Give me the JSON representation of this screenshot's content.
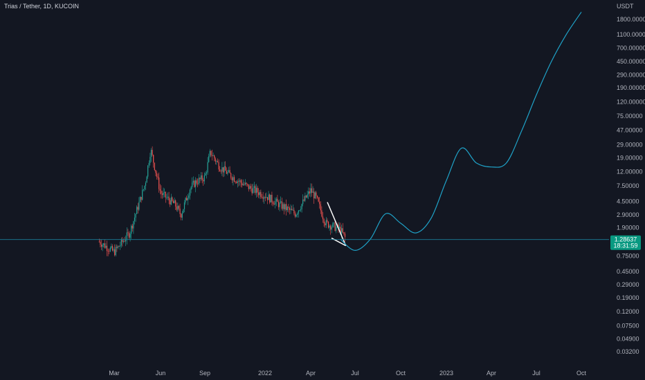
{
  "header": {
    "symbol_title": "Trias / Tether, 1D, KUCOIN",
    "currency": "USDT"
  },
  "price_badge": {
    "price": "1.28637",
    "countdown": "18:31:59"
  },
  "colors": {
    "background": "#131722",
    "up_candle": "#26a69a",
    "down_candle": "#ef5350",
    "projection_line": "#1fa3c9",
    "price_line": "#1a7f9a",
    "wedge_lines": "#ffffff",
    "badge": "#089981"
  },
  "chart_data": {
    "type": "line",
    "title": "Trias / Tether, 1D, KUCOIN",
    "xlabel": "",
    "ylabel": "",
    "y_scale": "log",
    "ylim": [
      0.025,
      2600
    ],
    "x_ticks": [
      "Mar",
      "Jun",
      "Sep",
      "2022",
      "Apr",
      "Jul",
      "Oct",
      "2023",
      "Apr",
      "Jul",
      "Oct"
    ],
    "y_ticks": [
      "1800.00000",
      "1100.00000",
      "700.00000",
      "450.00000",
      "290.00000",
      "190.00000",
      "120.00000",
      "75.00000",
      "47.00000",
      "29.00000",
      "19.00000",
      "12.00000",
      "7.50000",
      "4.50000",
      "2.90000",
      "1.90000",
      "0.75000",
      "0.45000",
      "0.29000",
      "0.19000",
      "0.12000",
      "0.07500",
      "0.04900",
      "0.03200"
    ],
    "last_price": 1.28637,
    "series": [
      {
        "type": "candlestick",
        "points": [
          [
            "Feb 2021",
            1.2
          ],
          [
            "Mar 2021",
            0.85
          ],
          [
            "Apr 2021",
            1.6
          ],
          [
            "May 2021",
            8.0
          ],
          [
            "May 2021",
            25.0
          ],
          [
            "Jun 2021",
            6.0
          ],
          [
            "Jul 2021",
            4.0
          ],
          [
            "Jul 2021",
            2.9
          ],
          [
            "Aug 2021",
            7.0
          ],
          [
            "Aug 2021",
            8.5
          ],
          [
            "Sep 2021",
            10.0
          ],
          [
            "Sep 2021",
            23.0
          ],
          [
            "Oct 2021",
            14.0
          ],
          [
            "Nov 2021",
            9.5
          ],
          [
            "Dec 2021",
            7.0
          ],
          [
            "Jan 2022",
            5.5
          ],
          [
            "Feb 2022",
            4.0
          ],
          [
            "Mar 2022",
            3.0
          ],
          [
            "Apr 2022",
            6.5
          ],
          [
            "Apr 2022",
            5.0
          ],
          [
            "May 2022",
            2.2
          ],
          [
            "Jun 2022",
            1.8
          ],
          [
            "Jun 2022",
            1.3
          ]
        ]
      },
      {
        "type": "projection",
        "points": [
          [
            "Jun 2022",
            1.3
          ],
          [
            "Jul 2022",
            0.9
          ],
          [
            "Aug 2022",
            1.3
          ],
          [
            "Sep 2022",
            3.0
          ],
          [
            "Oct 2022",
            2.2
          ],
          [
            "Nov 2022",
            1.6
          ],
          [
            "Dec 2022",
            2.6
          ],
          [
            "Jan 2023",
            9.0
          ],
          [
            "Feb 2023",
            26.0
          ],
          [
            "Mar 2023",
            16.0
          ],
          [
            "Apr 2023",
            14.0
          ],
          [
            "May 2023",
            16.0
          ],
          [
            "Jun 2023",
            45.0
          ],
          [
            "Jul 2023",
            150.0
          ],
          [
            "Aug 2023",
            450.0
          ],
          [
            "Sep 2023",
            1100.0
          ],
          [
            "Oct 2023",
            2300.0
          ]
        ]
      }
    ],
    "annotations": [
      "falling wedge"
    ]
  }
}
